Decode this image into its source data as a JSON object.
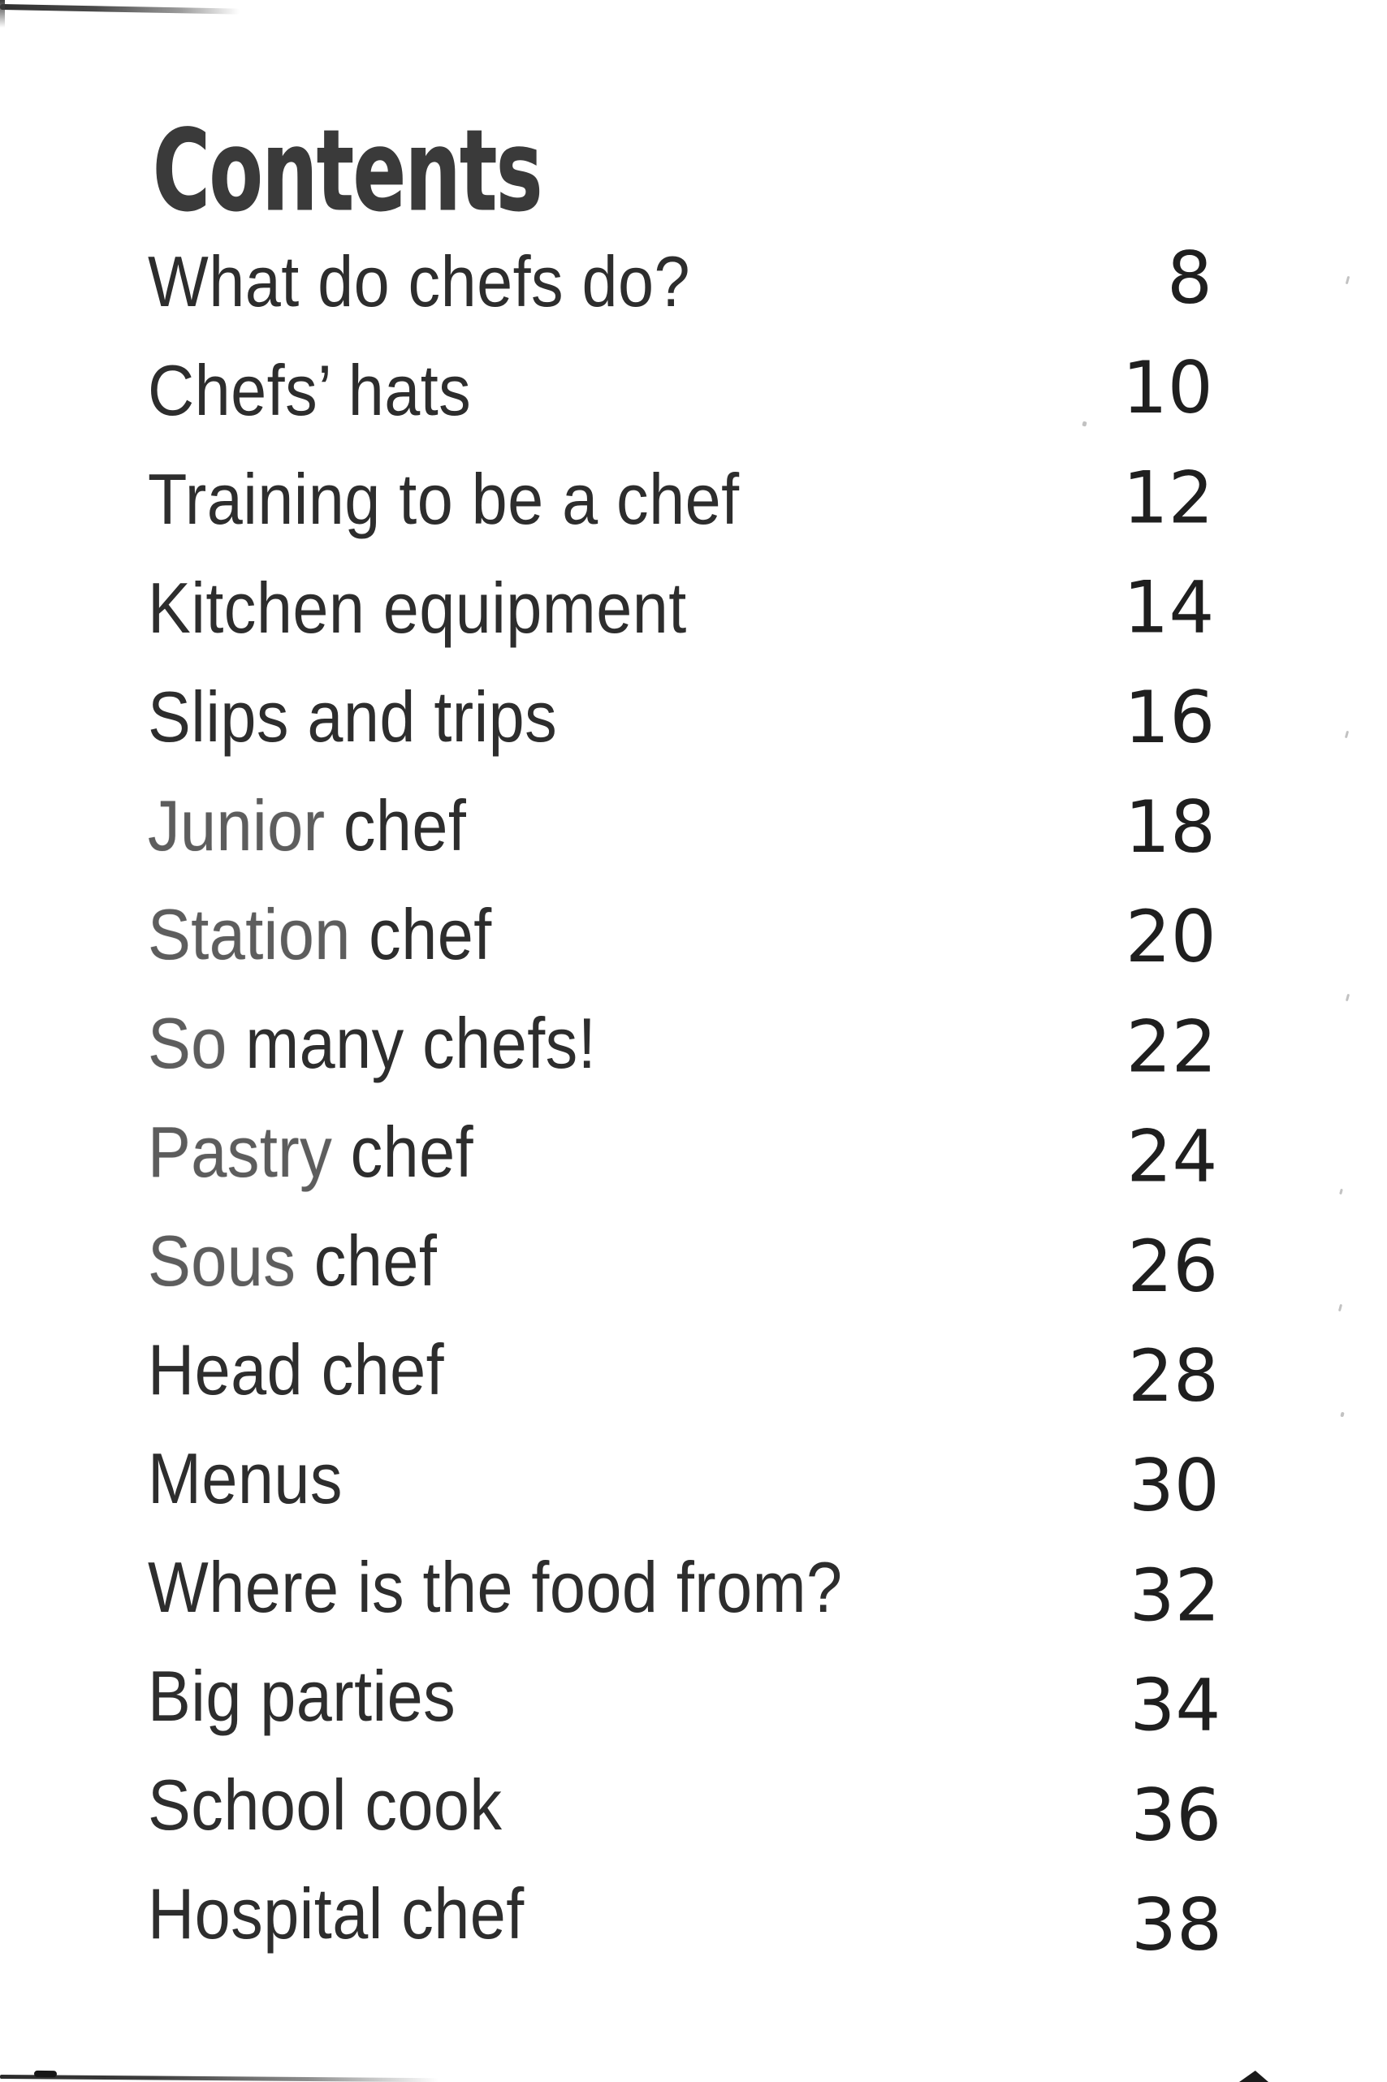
{
  "page": {
    "title": "Contents",
    "background": "#ffffff",
    "title_color": "#3a3a3a",
    "text_color": "#2d2d2d",
    "page_number_color": "#1f1f1f",
    "toc": [
      {
        "label": "What do chefs do?",
        "page": "8"
      },
      {
        "label": "Chefs’ hats",
        "page": "10"
      },
      {
        "label": "Training to be a chef",
        "page": "12"
      },
      {
        "label": "Kitchen equipment",
        "page": "14"
      },
      {
        "label": "Slips and trips",
        "page": "16"
      },
      {
        "label": "Junior chef",
        "page": "18"
      },
      {
        "label": "Station chef",
        "page": "20"
      },
      {
        "label": "So many chefs!",
        "page": "22"
      },
      {
        "label": "Pastry chef",
        "page": "24"
      },
      {
        "label": "Sous chef",
        "page": "26"
      },
      {
        "label": "Head chef",
        "page": "28"
      },
      {
        "label": "Menus",
        "page": "30"
      },
      {
        "label": "Where is the food from?",
        "page": "32"
      },
      {
        "label": "Big parties",
        "page": "34"
      },
      {
        "label": "School cook",
        "page": "36"
      },
      {
        "label": "Hospital chef",
        "page": "38"
      }
    ]
  }
}
